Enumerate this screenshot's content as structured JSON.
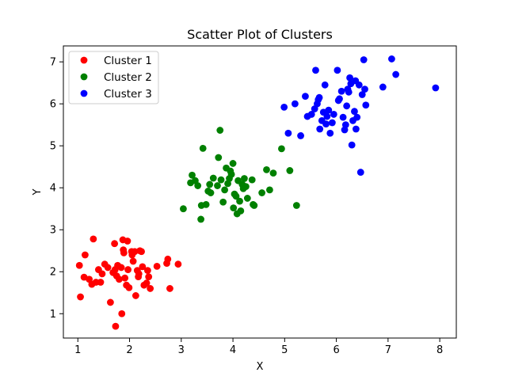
{
  "chart_data": {
    "type": "scatter",
    "title": "Scatter Plot of Clusters",
    "xlabel": "X",
    "ylabel": "Y",
    "xlim": [
      0.72,
      8.32
    ],
    "ylim": [
      0.42,
      7.38
    ],
    "xticks": [
      1,
      2,
      3,
      4,
      5,
      6,
      7,
      8
    ],
    "yticks": [
      1,
      2,
      3,
      4,
      5,
      6,
      7
    ],
    "grid": false,
    "legend_position": "top-left",
    "series": [
      {
        "name": "Cluster 1",
        "color": "#ff0000",
        "points": [
          [
            1.03,
            2.15
          ],
          [
            1.05,
            1.4
          ],
          [
            1.12,
            1.87
          ],
          [
            1.14,
            2.4
          ],
          [
            1.22,
            1.82
          ],
          [
            1.27,
            1.7
          ],
          [
            1.3,
            2.78
          ],
          [
            1.35,
            1.75
          ],
          [
            1.4,
            2.05
          ],
          [
            1.44,
            1.75
          ],
          [
            1.47,
            1.95
          ],
          [
            1.52,
            2.18
          ],
          [
            1.58,
            2.1
          ],
          [
            1.63,
            1.27
          ],
          [
            1.68,
            1.98
          ],
          [
            1.71,
            2.67
          ],
          [
            1.72,
            2.05
          ],
          [
            1.73,
            0.7
          ],
          [
            1.75,
            1.9
          ],
          [
            1.77,
            2.15
          ],
          [
            1.8,
            1.82
          ],
          [
            1.84,
            2.1
          ],
          [
            1.85,
            1.0
          ],
          [
            1.87,
            2.76
          ],
          [
            1.88,
            2.52
          ],
          [
            1.89,
            2.45
          ],
          [
            1.91,
            1.85
          ],
          [
            1.94,
            1.68
          ],
          [
            1.96,
            2.73
          ],
          [
            1.99,
            1.62
          ],
          [
            2.04,
            2.48
          ],
          [
            2.05,
            2.4
          ],
          [
            2.07,
            2.25
          ],
          [
            2.1,
            2.48
          ],
          [
            2.12,
            1.43
          ],
          [
            2.15,
            2.03
          ],
          [
            2.17,
            1.88
          ],
          [
            2.2,
            2.5
          ],
          [
            2.23,
            2.48
          ],
          [
            2.25,
            2.12
          ],
          [
            2.28,
            1.68
          ],
          [
            2.33,
            1.73
          ],
          [
            2.35,
            2.03
          ],
          [
            2.37,
            1.88
          ],
          [
            2.4,
            1.6
          ],
          [
            2.53,
            2.13
          ],
          [
            2.72,
            2.2
          ],
          [
            2.74,
            2.3
          ],
          [
            2.78,
            1.6
          ],
          [
            2.94,
            2.18
          ],
          [
            1.97,
            2.05
          ],
          [
            2.18,
            1.95
          ]
        ]
      },
      {
        "name": "Cluster 2",
        "color": "#008000",
        "points": [
          [
            3.04,
            3.5
          ],
          [
            3.18,
            4.12
          ],
          [
            3.21,
            4.3
          ],
          [
            3.27,
            4.17
          ],
          [
            3.32,
            4.05
          ],
          [
            3.38,
            3.25
          ],
          [
            3.39,
            3.58
          ],
          [
            3.42,
            4.94
          ],
          [
            3.48,
            3.6
          ],
          [
            3.52,
            3.92
          ],
          [
            3.55,
            4.08
          ],
          [
            3.57,
            3.88
          ],
          [
            3.62,
            4.23
          ],
          [
            3.7,
            4.05
          ],
          [
            3.75,
            5.37
          ],
          [
            3.77,
            4.19
          ],
          [
            3.81,
            3.66
          ],
          [
            3.84,
            3.95
          ],
          [
            3.87,
            4.47
          ],
          [
            3.9,
            4.1
          ],
          [
            3.93,
            4.22
          ],
          [
            3.95,
            4.4
          ],
          [
            3.97,
            4.32
          ],
          [
            4.0,
            4.58
          ],
          [
            4.01,
            3.52
          ],
          [
            4.03,
            3.85
          ],
          [
            4.06,
            3.8
          ],
          [
            4.08,
            3.38
          ],
          [
            4.1,
            4.17
          ],
          [
            4.13,
            3.68
          ],
          [
            4.15,
            3.45
          ],
          [
            4.18,
            4.08
          ],
          [
            4.22,
            4.22
          ],
          [
            4.25,
            4.03
          ],
          [
            4.28,
            3.75
          ],
          [
            4.37,
            4.19
          ],
          [
            4.39,
            3.6
          ],
          [
            4.41,
            3.58
          ],
          [
            4.56,
            3.88
          ],
          [
            4.65,
            4.43
          ],
          [
            4.71,
            3.95
          ],
          [
            4.78,
            4.35
          ],
          [
            4.94,
            4.93
          ],
          [
            5.1,
            4.41
          ],
          [
            5.23,
            3.58
          ],
          [
            3.72,
            4.72
          ],
          [
            4.2,
            3.98
          ]
        ]
      },
      {
        "name": "Cluster 3",
        "color": "#0000ff",
        "points": [
          [
            4.99,
            5.92
          ],
          [
            5.07,
            5.3
          ],
          [
            5.2,
            6.0
          ],
          [
            5.31,
            5.24
          ],
          [
            5.4,
            6.18
          ],
          [
            5.44,
            5.7
          ],
          [
            5.52,
            5.75
          ],
          [
            5.58,
            5.88
          ],
          [
            5.6,
            6.8
          ],
          [
            5.63,
            6.0
          ],
          [
            5.65,
            6.1
          ],
          [
            5.67,
            6.15
          ],
          [
            5.68,
            5.4
          ],
          [
            5.72,
            5.6
          ],
          [
            5.75,
            5.8
          ],
          [
            5.78,
            6.45
          ],
          [
            5.8,
            5.52
          ],
          [
            5.82,
            5.7
          ],
          [
            5.85,
            5.85
          ],
          [
            5.88,
            5.3
          ],
          [
            5.92,
            5.55
          ],
          [
            5.95,
            5.75
          ],
          [
            6.02,
            6.8
          ],
          [
            6.04,
            6.08
          ],
          [
            6.06,
            6.12
          ],
          [
            6.1,
            6.3
          ],
          [
            6.13,
            5.68
          ],
          [
            6.16,
            5.38
          ],
          [
            6.18,
            5.5
          ],
          [
            6.22,
            6.35
          ],
          [
            6.24,
            6.28
          ],
          [
            6.26,
            6.62
          ],
          [
            6.28,
            6.48
          ],
          [
            6.3,
            5.02
          ],
          [
            6.32,
            5.6
          ],
          [
            6.35,
            5.82
          ],
          [
            6.37,
            6.55
          ],
          [
            6.38,
            5.4
          ],
          [
            6.4,
            5.68
          ],
          [
            6.44,
            6.45
          ],
          [
            6.47,
            4.37
          ],
          [
            6.5,
            6.22
          ],
          [
            6.53,
            7.05
          ],
          [
            6.55,
            6.35
          ],
          [
            6.57,
            5.97
          ],
          [
            6.9,
            6.4
          ],
          [
            7.07,
            7.07
          ],
          [
            7.15,
            6.7
          ],
          [
            7.92,
            6.38
          ],
          [
            6.2,
            5.95
          ]
        ]
      }
    ]
  }
}
